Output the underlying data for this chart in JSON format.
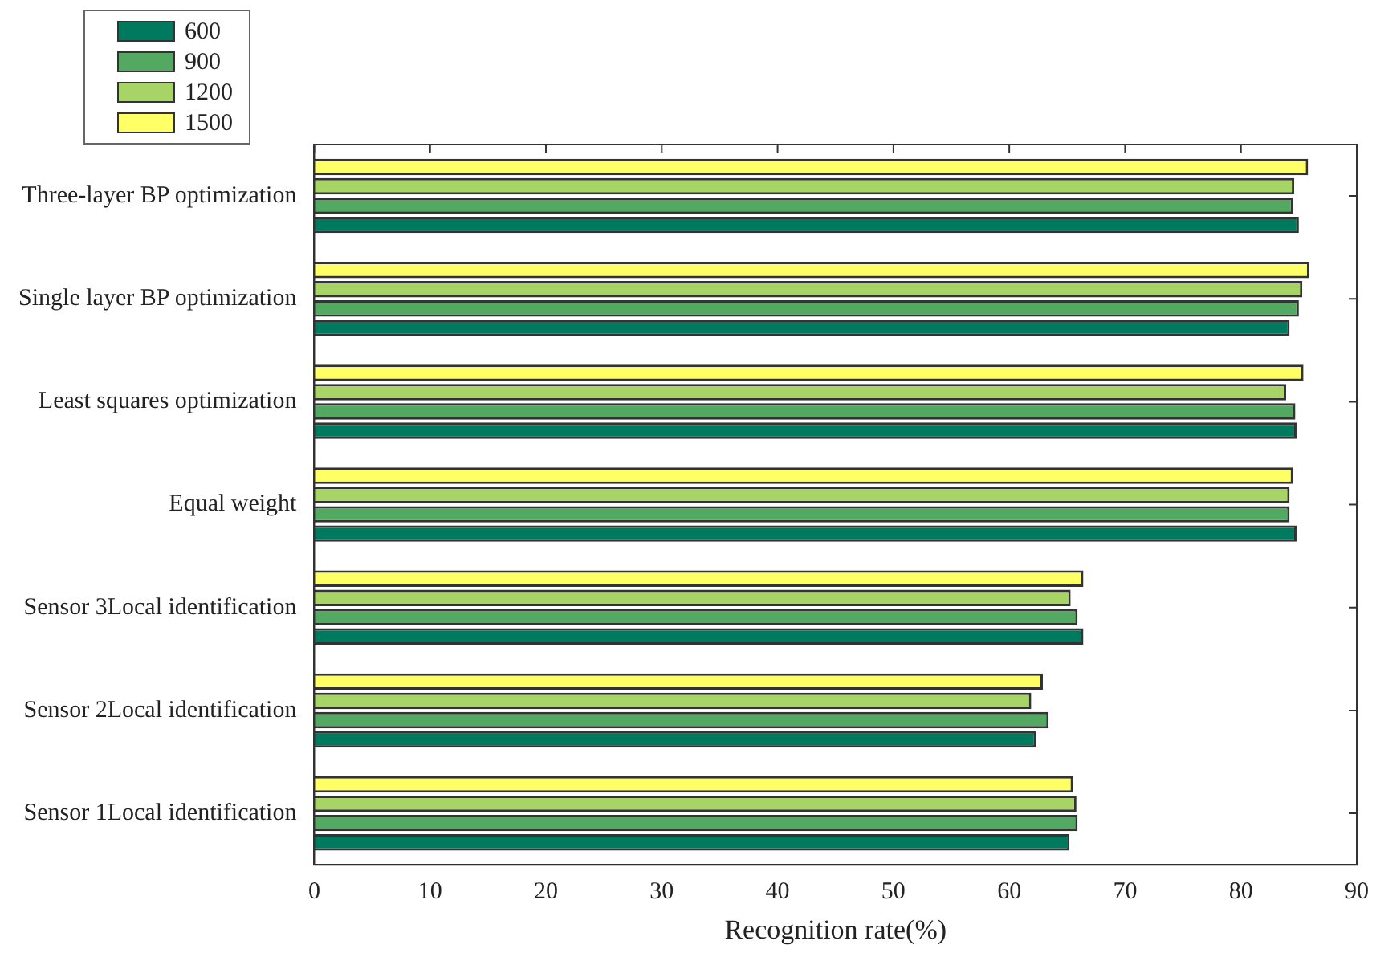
{
  "chart_data": {
    "type": "bar",
    "orientation": "horizontal",
    "xlabel": "Recognition rate(%)",
    "categories": [
      "Three-layer BP optimization",
      "Single layer BP optimization",
      "Least squares optimization",
      "Equal weight",
      "Sensor 3Local identification",
      "Sensor 2Local identification",
      "Sensor 1Local identification"
    ],
    "series": [
      {
        "name": "600",
        "color": "#007a5e",
        "values": [
          85.0,
          84.2,
          84.8,
          84.8,
          66.4,
          62.3,
          65.2
        ]
      },
      {
        "name": "900",
        "color": "#53a862",
        "values": [
          84.5,
          85.0,
          84.7,
          84.2,
          65.9,
          63.4,
          65.9
        ]
      },
      {
        "name": "1200",
        "color": "#a6d465",
        "values": [
          84.6,
          85.3,
          83.9,
          84.2,
          65.3,
          61.9,
          65.8
        ]
      },
      {
        "name": "1500",
        "color": "#ffff66",
        "values": [
          85.8,
          85.9,
          85.4,
          84.5,
          66.4,
          62.9,
          65.5
        ]
      }
    ],
    "xlim": [
      0,
      90
    ],
    "xticks": [
      0,
      10,
      20,
      30,
      40,
      50,
      60,
      70,
      80,
      90
    ],
    "grid": false,
    "legend": "top left"
  }
}
